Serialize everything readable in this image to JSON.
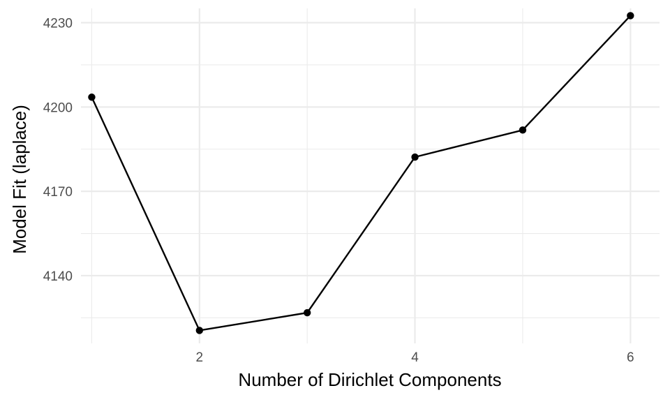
{
  "chart_data": {
    "type": "line",
    "xlabel": "Number of Dirichlet Components",
    "ylabel": "Model Fit (laplace)",
    "x": [
      1,
      2,
      3,
      4,
      5,
      6
    ],
    "series": [
      {
        "values": [
          4203.5,
          4120.5,
          4126.8,
          4182.2,
          4191.8,
          4232.5
        ]
      }
    ],
    "xlim": [
      0.9,
      6.27
    ],
    "ylim": [
      4115.9,
      4235.1
    ],
    "x_ticks": [
      2,
      4,
      6
    ],
    "y_ticks": [
      4140,
      4170,
      4200,
      4230
    ],
    "grid": true,
    "legend": "none",
    "colors": {
      "line": "#000000",
      "grid": "#ebebeb",
      "tick_text": "#4d4d4d"
    }
  }
}
